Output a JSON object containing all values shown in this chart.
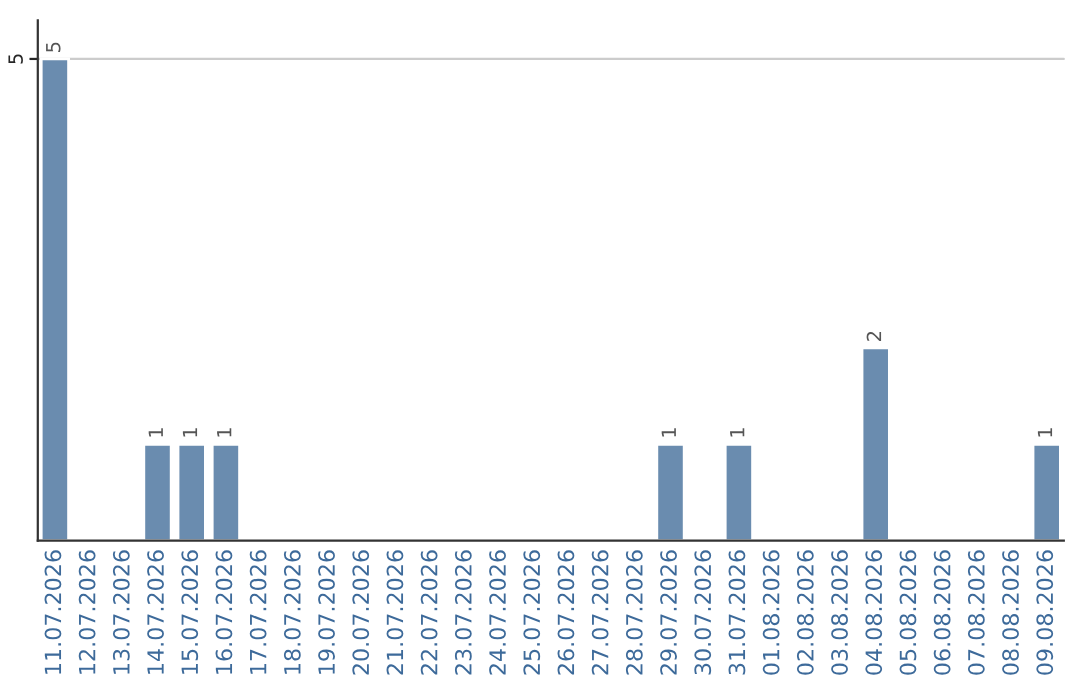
{
  "chart_data": {
    "type": "bar",
    "categories": [
      "11.07.2026",
      "12.07.2026",
      "13.07.2026",
      "14.07.2026",
      "15.07.2026",
      "16.07.2026",
      "17.07.2026",
      "18.07.2026",
      "19.07.2026",
      "20.07.2026",
      "21.07.2026",
      "22.07.2026",
      "23.07.2026",
      "24.07.2026",
      "25.07.2026",
      "26.07.2026",
      "27.07.2026",
      "28.07.2026",
      "29.07.2026",
      "30.07.2026",
      "31.07.2026",
      "01.08.2026",
      "02.08.2026",
      "03.08.2026",
      "04.08.2026",
      "05.08.2026",
      "06.08.2026",
      "07.08.2026",
      "08.08.2026",
      "09.08.2026"
    ],
    "values": [
      5,
      null,
      null,
      1,
      1,
      1,
      null,
      null,
      null,
      null,
      null,
      null,
      null,
      null,
      null,
      null,
      null,
      null,
      1,
      null,
      1,
      null,
      null,
      null,
      2,
      null,
      null,
      null,
      null,
      1
    ],
    "value_labels": [
      "5",
      null,
      null,
      "1",
      "1",
      "1",
      null,
      null,
      null,
      null,
      null,
      null,
      null,
      null,
      null,
      null,
      null,
      null,
      "1",
      null,
      "1",
      null,
      null,
      null,
      "2",
      null,
      null,
      null,
      null,
      "1"
    ],
    "color": "#6a8caf",
    "ylim": [
      0,
      5.4
    ],
    "yticks": [
      5
    ],
    "grid": "y",
    "legend": false
  }
}
